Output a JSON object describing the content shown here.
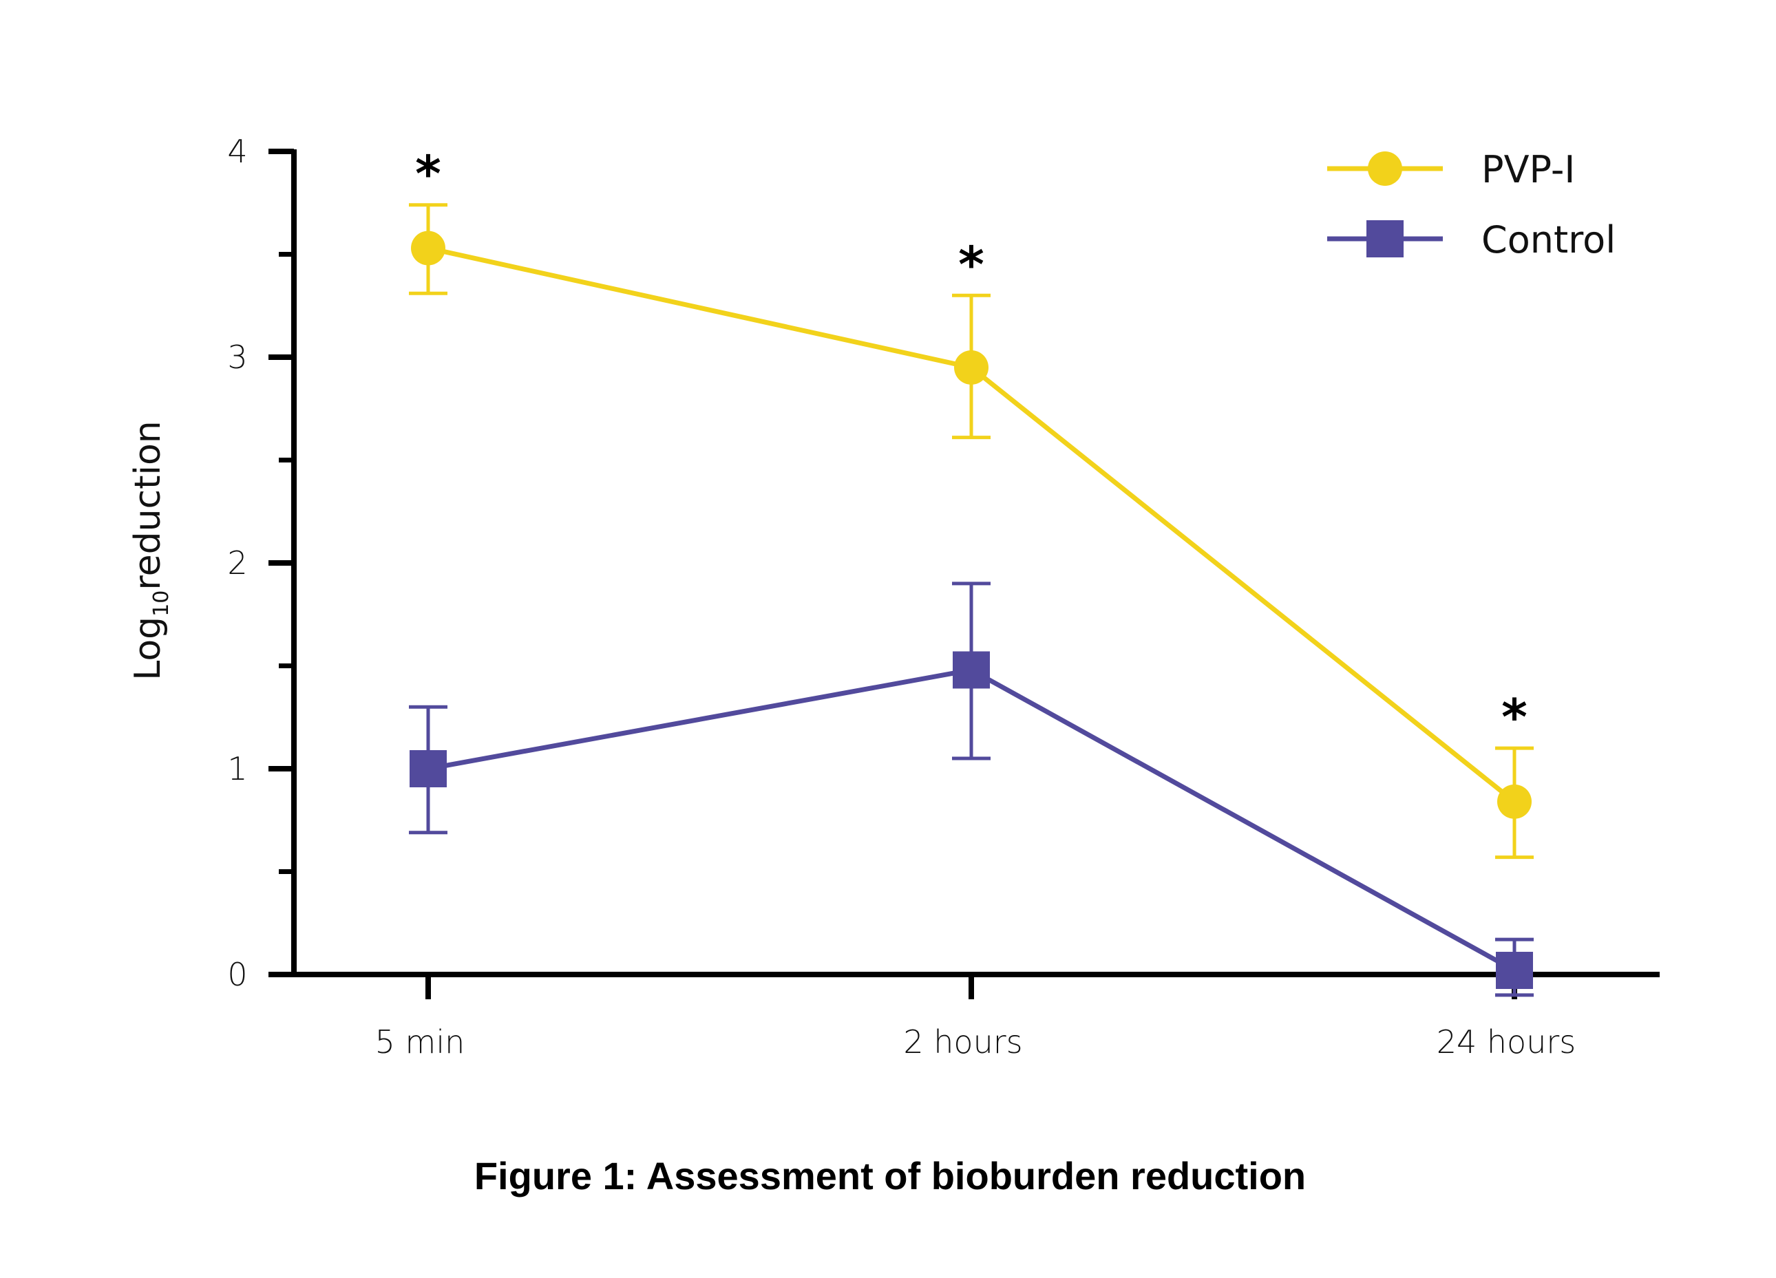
{
  "chart_data": {
    "type": "line",
    "title": "",
    "caption": "Figure 1: Assessment of bioburden reduction",
    "xlabel": "",
    "ylabel": "Log10 reduction",
    "ylabel_main": "Log",
    "ylabel_sub": "10",
    "ylabel_rest": "reduction",
    "categories": [
      "5 min",
      "2 hours",
      "24 hours"
    ],
    "ylim": [
      0,
      4
    ],
    "yticks": [
      0,
      1,
      2,
      3,
      4
    ],
    "yticks_minor": [
      0.5,
      1.5,
      2.5,
      3.5
    ],
    "grid": false,
    "legend_position": "top-right",
    "series": [
      {
        "name": "PVP-I",
        "color": "#F2D21B",
        "marker": "circle",
        "values": [
          3.53,
          2.95,
          0.84
        ],
        "error_upper": [
          3.74,
          3.3,
          1.1
        ],
        "error_lower": [
          3.31,
          2.61,
          0.57
        ],
        "significance": [
          "*",
          "*",
          "*"
        ]
      },
      {
        "name": "Control",
        "color": "#524A9C",
        "marker": "square",
        "values": [
          1.0,
          1.48,
          0.02
        ],
        "error_upper": [
          1.3,
          1.9,
          0.17
        ],
        "error_lower": [
          0.69,
          1.05,
          -0.1
        ],
        "significance": [
          "",
          "",
          ""
        ]
      }
    ]
  }
}
